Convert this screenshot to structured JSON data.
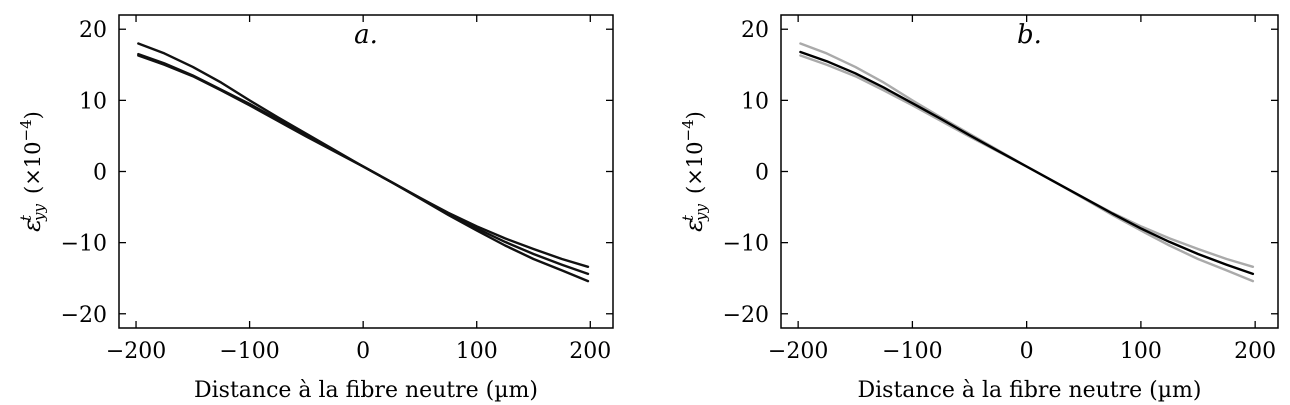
{
  "chart_data": [
    {
      "type": "line",
      "title": "a.",
      "xlabel": "Distance à la fibre neutre (µm)",
      "ylabel": {
        "symbol": "ε",
        "superscript": "t",
        "subscript": "yy",
        "unit": "(×10",
        "unit_exponent": "−4",
        "unit_close": ")"
      },
      "xlim": [
        -215,
        220
      ],
      "ylim": [
        -22,
        22
      ],
      "xticks": [
        -200,
        -100,
        0,
        100,
        200
      ],
      "xtick_labels": [
        "−200",
        "−100",
        "0",
        "100",
        "200"
      ],
      "yticks": [
        -20,
        -10,
        0,
        10,
        20
      ],
      "ytick_labels": [
        "−20",
        "−10",
        "0",
        "10",
        "20"
      ],
      "grid": false,
      "series": [
        {
          "color": "#111111",
          "x": [
            -198,
            -175,
            -150,
            -125,
            -100,
            -75,
            -50,
            -25,
            0,
            25,
            50,
            75,
            100,
            125,
            150,
            175,
            198
          ],
          "y": [
            18.0,
            16.6,
            14.7,
            12.5,
            10.0,
            7.6,
            5.3,
            3.0,
            0.7,
            -1.5,
            -3.8,
            -6.1,
            -8.3,
            -10.4,
            -12.3,
            -13.9,
            -15.4
          ]
        },
        {
          "color": "#111111",
          "x": [
            -198,
            -175,
            -150,
            -125,
            -100,
            -75,
            -50,
            -25,
            0,
            25,
            50,
            75,
            100,
            125,
            150,
            175,
            198
          ],
          "y": [
            16.5,
            15.2,
            13.5,
            11.5,
            9.5,
            7.3,
            5.1,
            2.9,
            0.7,
            -1.5,
            -3.7,
            -5.9,
            -8.0,
            -9.9,
            -11.6,
            -13.1,
            -14.4
          ]
        },
        {
          "color": "#111111",
          "x": [
            -198,
            -175,
            -150,
            -125,
            -100,
            -75,
            -50,
            -25,
            0,
            25,
            50,
            75,
            100,
            125,
            150,
            175,
            198
          ],
          "y": [
            16.3,
            15.0,
            13.4,
            11.4,
            9.3,
            7.1,
            4.9,
            2.8,
            0.7,
            -1.5,
            -3.7,
            -5.8,
            -7.7,
            -9.4,
            -10.9,
            -12.3,
            -13.4
          ]
        }
      ]
    },
    {
      "type": "line",
      "title": "b.",
      "xlabel": "Distance à la fibre neutre (µm)",
      "ylabel": {
        "symbol": "ε",
        "superscript": "t",
        "subscript": "yy",
        "unit": "(×10",
        "unit_exponent": "−4",
        "unit_close": ")"
      },
      "xlim": [
        -215,
        220
      ],
      "ylim": [
        -22,
        22
      ],
      "xticks": [
        -200,
        -100,
        0,
        100,
        200
      ],
      "xtick_labels": [
        "−200",
        "−100",
        "0",
        "100",
        "200"
      ],
      "yticks": [
        -20,
        -10,
        0,
        10,
        20
      ],
      "ytick_labels": [
        "−20",
        "−10",
        "0",
        "10",
        "20"
      ],
      "grid": false,
      "series": [
        {
          "color": "#aaaaaa",
          "x": [
            -198,
            -175,
            -150,
            -125,
            -100,
            -75,
            -50,
            -25,
            0,
            25,
            50,
            75,
            100,
            125,
            150,
            175,
            198
          ],
          "y": [
            18.0,
            16.6,
            14.7,
            12.5,
            10.0,
            7.6,
            5.3,
            3.0,
            0.7,
            -1.5,
            -3.8,
            -6.1,
            -8.3,
            -10.4,
            -12.3,
            -13.9,
            -15.4
          ]
        },
        {
          "color": "#aaaaaa",
          "x": [
            -198,
            -175,
            -150,
            -125,
            -100,
            -75,
            -50,
            -25,
            0,
            25,
            50,
            75,
            100,
            125,
            150,
            175,
            198
          ],
          "y": [
            16.3,
            15.0,
            13.4,
            11.4,
            9.3,
            7.1,
            4.9,
            2.8,
            0.7,
            -1.5,
            -3.7,
            -5.8,
            -7.7,
            -9.4,
            -10.9,
            -12.3,
            -13.4
          ]
        },
        {
          "color": "#000000",
          "x": [
            -198,
            -175,
            -150,
            -125,
            -100,
            -75,
            -50,
            -25,
            0,
            25,
            50,
            75,
            100,
            125,
            150,
            175,
            198
          ],
          "y": [
            16.8,
            15.5,
            13.8,
            11.8,
            9.6,
            7.4,
            5.1,
            2.9,
            0.7,
            -1.5,
            -3.7,
            -5.9,
            -8.0,
            -9.9,
            -11.6,
            -13.1,
            -14.4
          ]
        }
      ]
    }
  ]
}
